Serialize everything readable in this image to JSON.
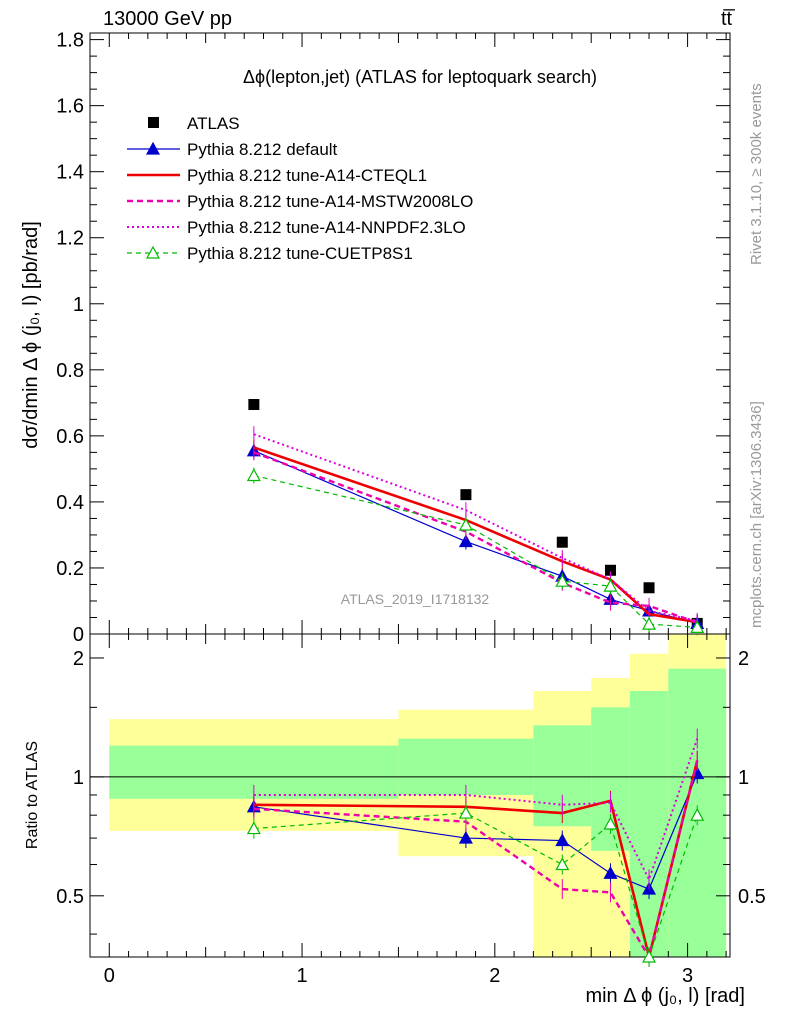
{
  "header": {
    "left": "13000 GeV pp",
    "right": "tt̅"
  },
  "side": {
    "rivet": "Rivet 3.1.10, ≥ 300k events",
    "mcplots": "mcplots.cern.ch [arXiv:1306.3436]"
  },
  "chart_data": {
    "type": "scatter",
    "title": "Δϕ(lepton,jet) (ATLAS for leptoquark search)",
    "analysis_id": "ATLAS_2019_I1718132",
    "xlabel": "min Δ ϕ (j₀, l) [rad]",
    "ylabel": "dσ/dmin Δ ϕ (j₀, l) [pb/rad]",
    "ratio_ylabel": "Ratio to ATLAS",
    "xlim": [
      -0.1,
      3.22
    ],
    "ylim": [
      0,
      1.82
    ],
    "ratio_ylim": [
      0.35,
      2.3
    ],
    "xticks": [
      "0",
      "1",
      "2",
      "3"
    ],
    "yticks": [
      "0",
      "0.2",
      "0.4",
      "0.6",
      "0.8",
      "1",
      "1.2",
      "1.4",
      "1.6",
      "1.8"
    ],
    "ratio_yticks": [
      "0.5",
      "1",
      "2"
    ],
    "x": [
      0.75,
      1.85,
      2.35,
      2.6,
      2.8,
      3.05
    ],
    "bin_edges": [
      0,
      1.5,
      2.2,
      2.5,
      2.7,
      2.9,
      3.2
    ],
    "band_green": [
      [
        0.88,
        1.2
      ],
      [
        0.9,
        1.25
      ],
      [
        0.75,
        1.35
      ],
      [
        0.65,
        1.5
      ],
      [
        0.35,
        1.65
      ],
      [
        0.35,
        1.88
      ]
    ],
    "band_yellow": [
      [
        0.73,
        1.4
      ],
      [
        0.63,
        1.48
      ],
      [
        0.35,
        1.65
      ],
      [
        0.35,
        1.78
      ],
      [
        0.35,
        2.05
      ],
      [
        0.35,
        2.3
      ]
    ],
    "series": [
      {
        "name": "ATLAS",
        "values": [
          0.695,
          0.422,
          0.278,
          0.193,
          0.14,
          0.032
        ],
        "ratio": [
          1,
          1,
          1,
          1,
          1,
          1
        ],
        "color": "#000000",
        "style": "data"
      },
      {
        "name": "Pythia 8.212 default",
        "values": [
          0.555,
          0.28,
          0.175,
          0.105,
          0.07,
          0.032
        ],
        "ratio": [
          0.84,
          0.7,
          0.69,
          0.57,
          0.52,
          1.02
        ],
        "color": "#0000cc",
        "style": "solid-thin",
        "marker": "triangle-filled"
      },
      {
        "name": "Pythia 8.212 tune-A14-CTEQL1",
        "values": [
          0.565,
          0.345,
          0.22,
          0.165,
          0.06,
          0.036
        ],
        "ratio": [
          0.85,
          0.84,
          0.81,
          0.87,
          0.3,
          1.1
        ],
        "color": "#ee0000",
        "style": "solid-thick",
        "marker": "none"
      },
      {
        "name": "Pythia 8.212 tune-A14-MSTW2008LO",
        "values": [
          0.55,
          0.31,
          0.155,
          0.095,
          0.085,
          0.035
        ],
        "ratio": [
          0.83,
          0.77,
          0.52,
          0.51,
          0.3,
          1.1
        ],
        "color": "#ee00aa",
        "style": "dashed",
        "marker": "none"
      },
      {
        "name": "Pythia 8.212 tune-A14-NNPDF2.3LO",
        "values": [
          0.605,
          0.375,
          0.23,
          0.165,
          0.07,
          0.04
        ],
        "ratio": [
          0.9,
          0.9,
          0.85,
          0.86,
          0.55,
          1.25
        ],
        "color": "#dd00dd",
        "style": "dotted",
        "marker": "none"
      },
      {
        "name": "Pythia 8.212 tune-CUETP8S1",
        "values": [
          0.48,
          0.33,
          0.16,
          0.145,
          0.03,
          0.02
        ],
        "ratio": [
          0.74,
          0.81,
          0.6,
          0.76,
          0.3,
          0.8
        ],
        "color": "#00bb00",
        "style": "dashed-thin",
        "marker": "triangle-open"
      }
    ]
  }
}
